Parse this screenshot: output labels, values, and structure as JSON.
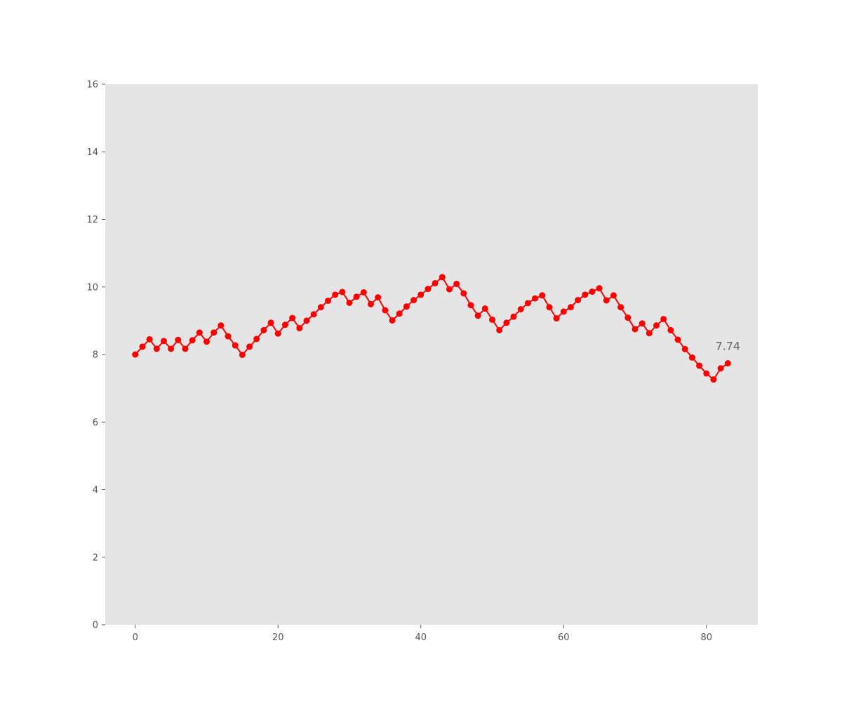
{
  "chart_data": {
    "type": "line",
    "title": "",
    "xlabel": "",
    "ylabel": "",
    "xlim": [
      -4.2,
      87.2
    ],
    "ylim": [
      0,
      16
    ],
    "xticks": [
      0,
      20,
      40,
      60,
      80
    ],
    "yticks": [
      0,
      2,
      4,
      6,
      8,
      10,
      12,
      14,
      16
    ],
    "grid": false,
    "background_color": "#e5e5e5",
    "series": [
      {
        "color": "#ff0000",
        "marker": "circle",
        "x": [
          0,
          1,
          2,
          3,
          4,
          5,
          6,
          7,
          8,
          9,
          10,
          11,
          12,
          13,
          14,
          15,
          16,
          17,
          18,
          19,
          20,
          21,
          22,
          23,
          24,
          25,
          26,
          27,
          28,
          29,
          30,
          31,
          32,
          33,
          34,
          35,
          36,
          37,
          38,
          39,
          40,
          41,
          42,
          43,
          44,
          45,
          46,
          47,
          48,
          49,
          50,
          51,
          52,
          53,
          54,
          55,
          56,
          57,
          58,
          59,
          60,
          61,
          62,
          63,
          64,
          65,
          66,
          67,
          68,
          69,
          70,
          71,
          72,
          73,
          74,
          75,
          76,
          77,
          78,
          79,
          80,
          81,
          82,
          83
        ],
        "y": [
          8.0,
          8.23,
          8.45,
          8.17,
          8.4,
          8.17,
          8.43,
          8.17,
          8.42,
          8.65,
          8.38,
          8.65,
          8.86,
          8.54,
          8.27,
          7.99,
          8.23,
          8.46,
          8.72,
          8.94,
          8.62,
          8.88,
          9.08,
          8.78,
          9.0,
          9.19,
          9.4,
          9.59,
          9.77,
          9.85,
          9.53,
          9.71,
          9.84,
          9.49,
          9.69,
          9.31,
          9.01,
          9.21,
          9.42,
          9.61,
          9.77,
          9.94,
          10.11,
          10.29,
          9.93,
          10.09,
          9.81,
          9.46,
          9.15,
          9.36,
          9.03,
          8.72,
          8.94,
          9.12,
          9.34,
          9.52,
          9.66,
          9.75,
          9.4,
          9.07,
          9.27,
          9.4,
          9.61,
          9.77,
          9.86,
          9.96,
          9.6,
          9.75,
          9.4,
          9.09,
          8.75,
          8.92,
          8.63,
          8.86,
          9.05,
          8.72,
          8.44,
          8.16,
          7.91,
          7.67,
          7.44,
          7.26,
          7.59,
          7.74
        ]
      }
    ],
    "annotations": [
      {
        "text": "7.74",
        "x": 83,
        "y": 7.74
      }
    ]
  }
}
